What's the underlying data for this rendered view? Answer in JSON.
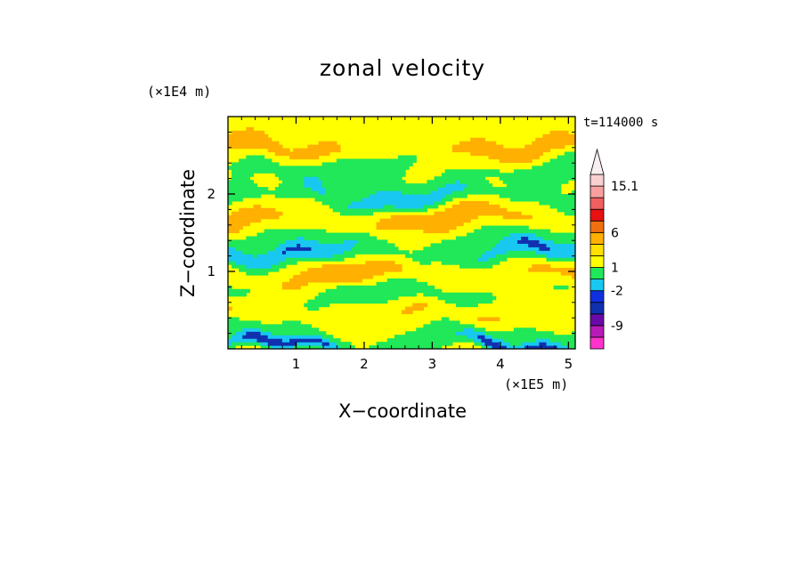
{
  "chart_data": {
    "type": "heatmap",
    "title": "zonal velocity",
    "xlabel": "X−coordinate",
    "ylabel": "Z−coordinate",
    "x_unit": "(×1E5 m)",
    "y_unit": "(×1E4 m)",
    "time_label": "t=114000 s",
    "xlim": [
      0,
      5.1
    ],
    "ylim": [
      0,
      3.0
    ],
    "x_ticks": [
      1,
      2,
      3,
      4,
      5
    ],
    "y_ticks": [
      1,
      2
    ],
    "x_tick_labels": [
      "1",
      "2",
      "3",
      "4",
      "5"
    ],
    "y_tick_labels": [
      "1",
      "2"
    ],
    "colorbar": {
      "colors": [
        "#ff33cc",
        "#b81ab8",
        "#6a0aa8",
        "#1030b0",
        "#1030e0",
        "#18c8f0",
        "#20e858",
        "#ffff00",
        "#ffe000",
        "#ffb000",
        "#f07010",
        "#e81010",
        "#f06060",
        "#f8a0a0",
        "#f8d0d0"
      ],
      "tick_labels": [
        "-9",
        "-2",
        "1",
        "6",
        "15.1"
      ],
      "tick_level_index": [
        2,
        5,
        7,
        10,
        14
      ],
      "extend_max": true
    },
    "level_colors": {
      "strong_neg": "#1030b0",
      "neg": "#18c8f0",
      "zero": "#20e858",
      "small_pos": "#ffff00",
      "pos": "#ffb000",
      "strong_pos": "#f07010"
    },
    "bands": [
      {
        "z_center": 2.75,
        "width": 0.18,
        "value": 1.5
      },
      {
        "z_center": 2.6,
        "width": 0.14,
        "value": 4.0
      },
      {
        "z_center": 2.35,
        "width": 0.2,
        "value": -1.0
      },
      {
        "z_center": 2.1,
        "width": 0.16,
        "value": 0.5
      },
      {
        "z_center": 1.95,
        "width": 0.14,
        "value": -3.0
      },
      {
        "z_center": 1.7,
        "width": 0.16,
        "value": 4.5
      },
      {
        "z_center": 1.45,
        "width": 0.16,
        "value": 0.0
      },
      {
        "z_center": 1.25,
        "width": 0.14,
        "value": -3.5
      },
      {
        "z_center": 0.95,
        "width": 0.14,
        "value": 4.0
      },
      {
        "z_center": 0.7,
        "width": 0.14,
        "value": -1.5
      },
      {
        "z_center": 0.45,
        "width": 0.14,
        "value": 3.0
      },
      {
        "z_center": 0.2,
        "width": 0.12,
        "value": -1.0
      },
      {
        "z_center": 0.05,
        "width": 0.08,
        "value": -4.0
      }
    ]
  }
}
